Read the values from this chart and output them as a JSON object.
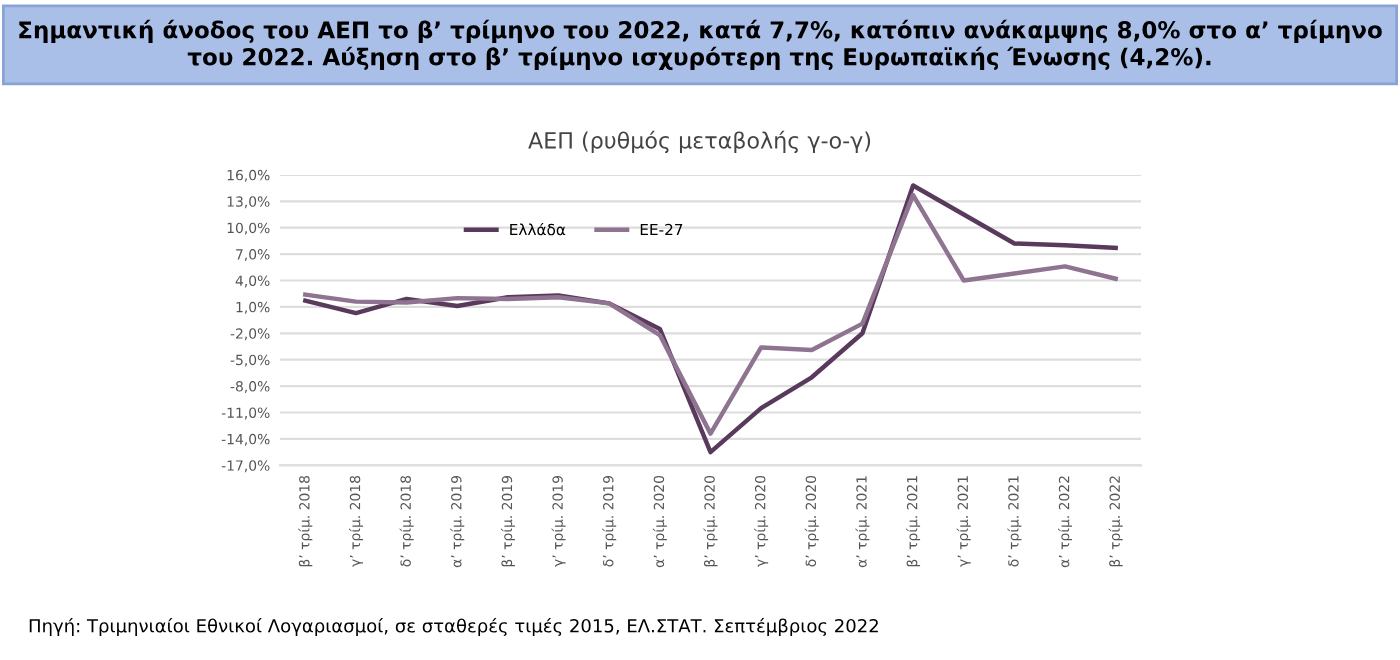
{
  "chart_data": {
    "type": "line",
    "title": "Σημαντική άνοδος του ΑΕΠ το β’ τρίμηνο του 2022, κατά 7,7%, κατόπιν ανάκαμψης 8,0% στο α’ τρίμηνο του 2022. Αύξηση στο β’ τρίμηνο ισχυρότερη της Ευρωπαϊκής Ένωσης (4,2%).",
    "subtitle": "ΑΕΠ (ρυθμός μεταβολής γ-ο-γ)",
    "annotations": [
      "Πηγή: Τριμηνιαίοι Εθνικοί Λογαριασμοί, σε σταθερές τιμές 2015, ΕΛ.ΣΤΑΤ. Σεπτέμβριος 2022"
    ],
    "categories": [
      "β’ τρίμ. 2018",
      "γ’ τρίμ. 2018",
      "δ’ τρίμ. 2018",
      "α’ τρίμ. 2019",
      "β’ τρίμ. 2019",
      "γ’ τρίμ. 2019",
      "δ’ τρίμ. 2019",
      "α’ τρίμ. 2020",
      "β’ τρίμ. 2020",
      "γ’ τρίμ. 2020",
      "δ’ τρίμ. 2020",
      "α’ τρίμ. 2021",
      "β’ τρίμ. 2021",
      "γ’ τρίμ. 2021",
      "δ’ τρίμ. 2021",
      "α’ τρίμ. 2022",
      "β’ τρίμ. 2022"
    ],
    "series": [
      {
        "name": "Ελλάδα",
        "color": "#5a3a5c",
        "values": [
          1.7,
          0.3,
          1.9,
          1.1,
          2.1,
          2.3,
          1.4,
          -1.5,
          -15.5,
          -10.5,
          -7.0,
          -2.0,
          14.8,
          11.5,
          8.2,
          8.0,
          7.7
        ]
      },
      {
        "name": "ΕΕ-27",
        "color": "#8e7490",
        "values": [
          2.4,
          1.6,
          1.5,
          2.0,
          1.9,
          2.1,
          1.4,
          -2.2,
          -13.4,
          -3.6,
          -3.9,
          -0.9,
          13.7,
          4.0,
          4.8,
          5.6,
          4.2
        ]
      }
    ],
    "ylim": [
      -17,
      16
    ],
    "yticks": [
      {
        "value": -17,
        "label": "-17,0%"
      },
      {
        "value": -14,
        "label": "-14,0%"
      },
      {
        "value": -11,
        "label": "-11,0%"
      },
      {
        "value": -8,
        "label": "-8,0%"
      },
      {
        "value": -5,
        "label": "-5,0%"
      },
      {
        "value": -2,
        "label": "-2,0%"
      },
      {
        "value": 1,
        "label": "1,0%"
      },
      {
        "value": 4,
        "label": "4,0%"
      },
      {
        "value": 7,
        "label": "7,0%"
      },
      {
        "value": 10,
        "label": "10,0%"
      },
      {
        "value": 13,
        "label": "13,0%"
      },
      {
        "value": 16,
        "label": "16,0%"
      }
    ],
    "grid": "y",
    "legend": "top left",
    "marker": "none",
    "line_style": "solid"
  }
}
